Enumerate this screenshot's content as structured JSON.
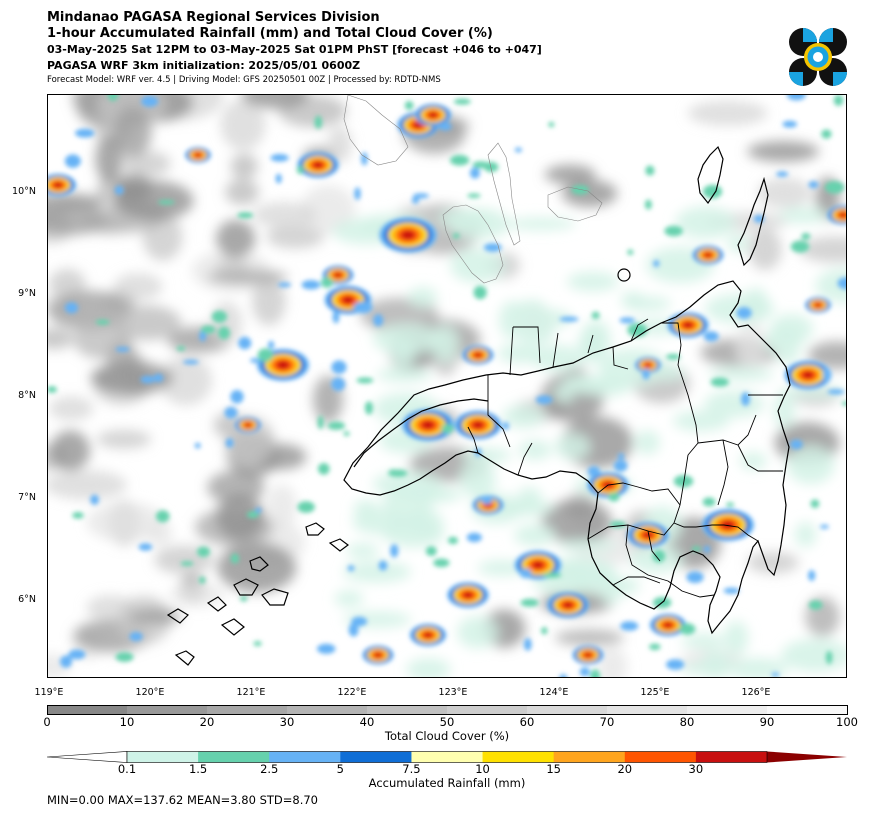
{
  "header": {
    "line1": "Mindanao PAGASA Regional Services Division",
    "line2": "1-hour Accumulated Rainfall (mm) and Total Cloud Cover (%)",
    "line3": "03-May-2025 Sat 12PM to 03-May-2025 Sat 01PM PhST [forecast +046 to +047]",
    "line4": "PAGASA WRF 3km initialization: 2025/05/01 0600Z",
    "line5": "Forecast Model: WRF ver. 4.5 | Driving Model: GFS 20250501 00Z | Processed by: RDTD-NMS"
  },
  "map": {
    "lat_labels": [
      "10°N",
      "9°N",
      "8°N",
      "7°N",
      "6°N"
    ],
    "lon_labels": [
      "119°E",
      "120°E",
      "121°E",
      "122°E",
      "123°E",
      "124°E",
      "125°E",
      "126°E"
    ],
    "lon_range": [
      119,
      126.9
    ],
    "lat_range": [
      5.2,
      10.95
    ]
  },
  "cloud_colorbar": {
    "label": "Total Cloud Cover (%)",
    "ticks": [
      "0",
      "10",
      "20",
      "30",
      "40",
      "50",
      "60",
      "70",
      "80",
      "90",
      "100"
    ],
    "colors": [
      "#888888",
      "#999999",
      "#a7a7a7",
      "#b4b4b4",
      "#c1c1c1",
      "#cdcdcd",
      "#d9d9d9",
      "#e4e4e4",
      "#eeeeee",
      "#f8f8f8"
    ]
  },
  "rain_colorbar": {
    "label": "Accumulated Rainfall (mm)",
    "ticks": [
      "0.1",
      "1.5",
      "2.5",
      "5",
      "7.5",
      "10",
      "15",
      "20",
      "30"
    ],
    "colors": [
      "#ffffff",
      "#cff3e8",
      "#66d1ad",
      "#66b2f5",
      "#0f6ed6",
      "#ffffb0",
      "#ffe100",
      "#ffa51e",
      "#ff5500",
      "#c80f0f",
      "#8b0000"
    ]
  },
  "stats": {
    "text": "MIN=0.00   MAX=137.62   MEAN=3.80   STD=8.70"
  }
}
